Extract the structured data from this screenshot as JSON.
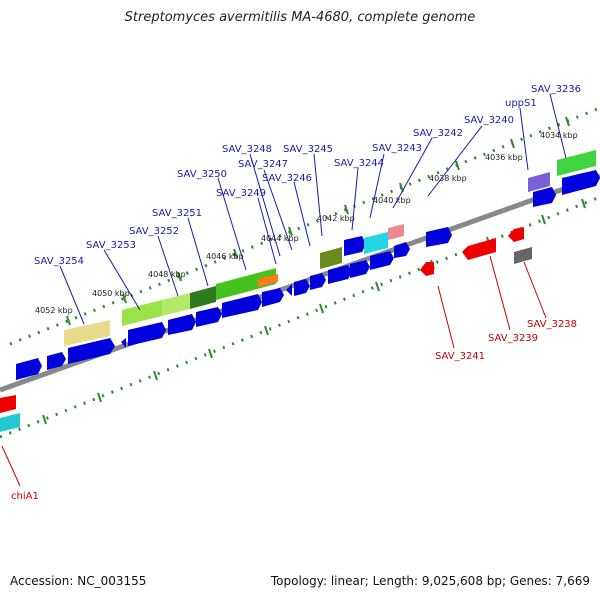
{
  "header": {
    "title": "Streptomyces avermitilis MA-4680, complete genome"
  },
  "footer": {
    "accession": "Accession: NC_003155",
    "summary": "Topology: linear; Length: 9,025,608 bp; Genes: 7,669"
  },
  "colors": {
    "forward_gene": "#0000dd",
    "reverse_gene": "#ee0000",
    "label_forward": "#1a1aaa",
    "label_reverse": "#cc0000",
    "backbone": "#888888",
    "tick": "#2e8b2e"
  },
  "kbp_ticks": [
    "4034 kbp",
    "4036 kbp",
    "4038 kbp",
    "4040 kbp",
    "4042 kbp",
    "4044 kbp",
    "4046 kbp",
    "4048 kbp",
    "4050 kbp",
    "4052 kbp"
  ],
  "forward_labels": [
    "SAV_3236",
    "uppS1",
    "SAV_3240",
    "SAV_3242",
    "SAV_3243",
    "SAV_3244",
    "SAV_3245",
    "SAV_3246",
    "SAV_3247",
    "SAV_3248",
    "SAV_3249",
    "SAV_3250",
    "SAV_3251",
    "SAV_3252",
    "SAV_3253",
    "SAV_3254"
  ],
  "reverse_labels": [
    "SAV_3238",
    "SAV_3239",
    "SAV_3241",
    "chiA1"
  ]
}
